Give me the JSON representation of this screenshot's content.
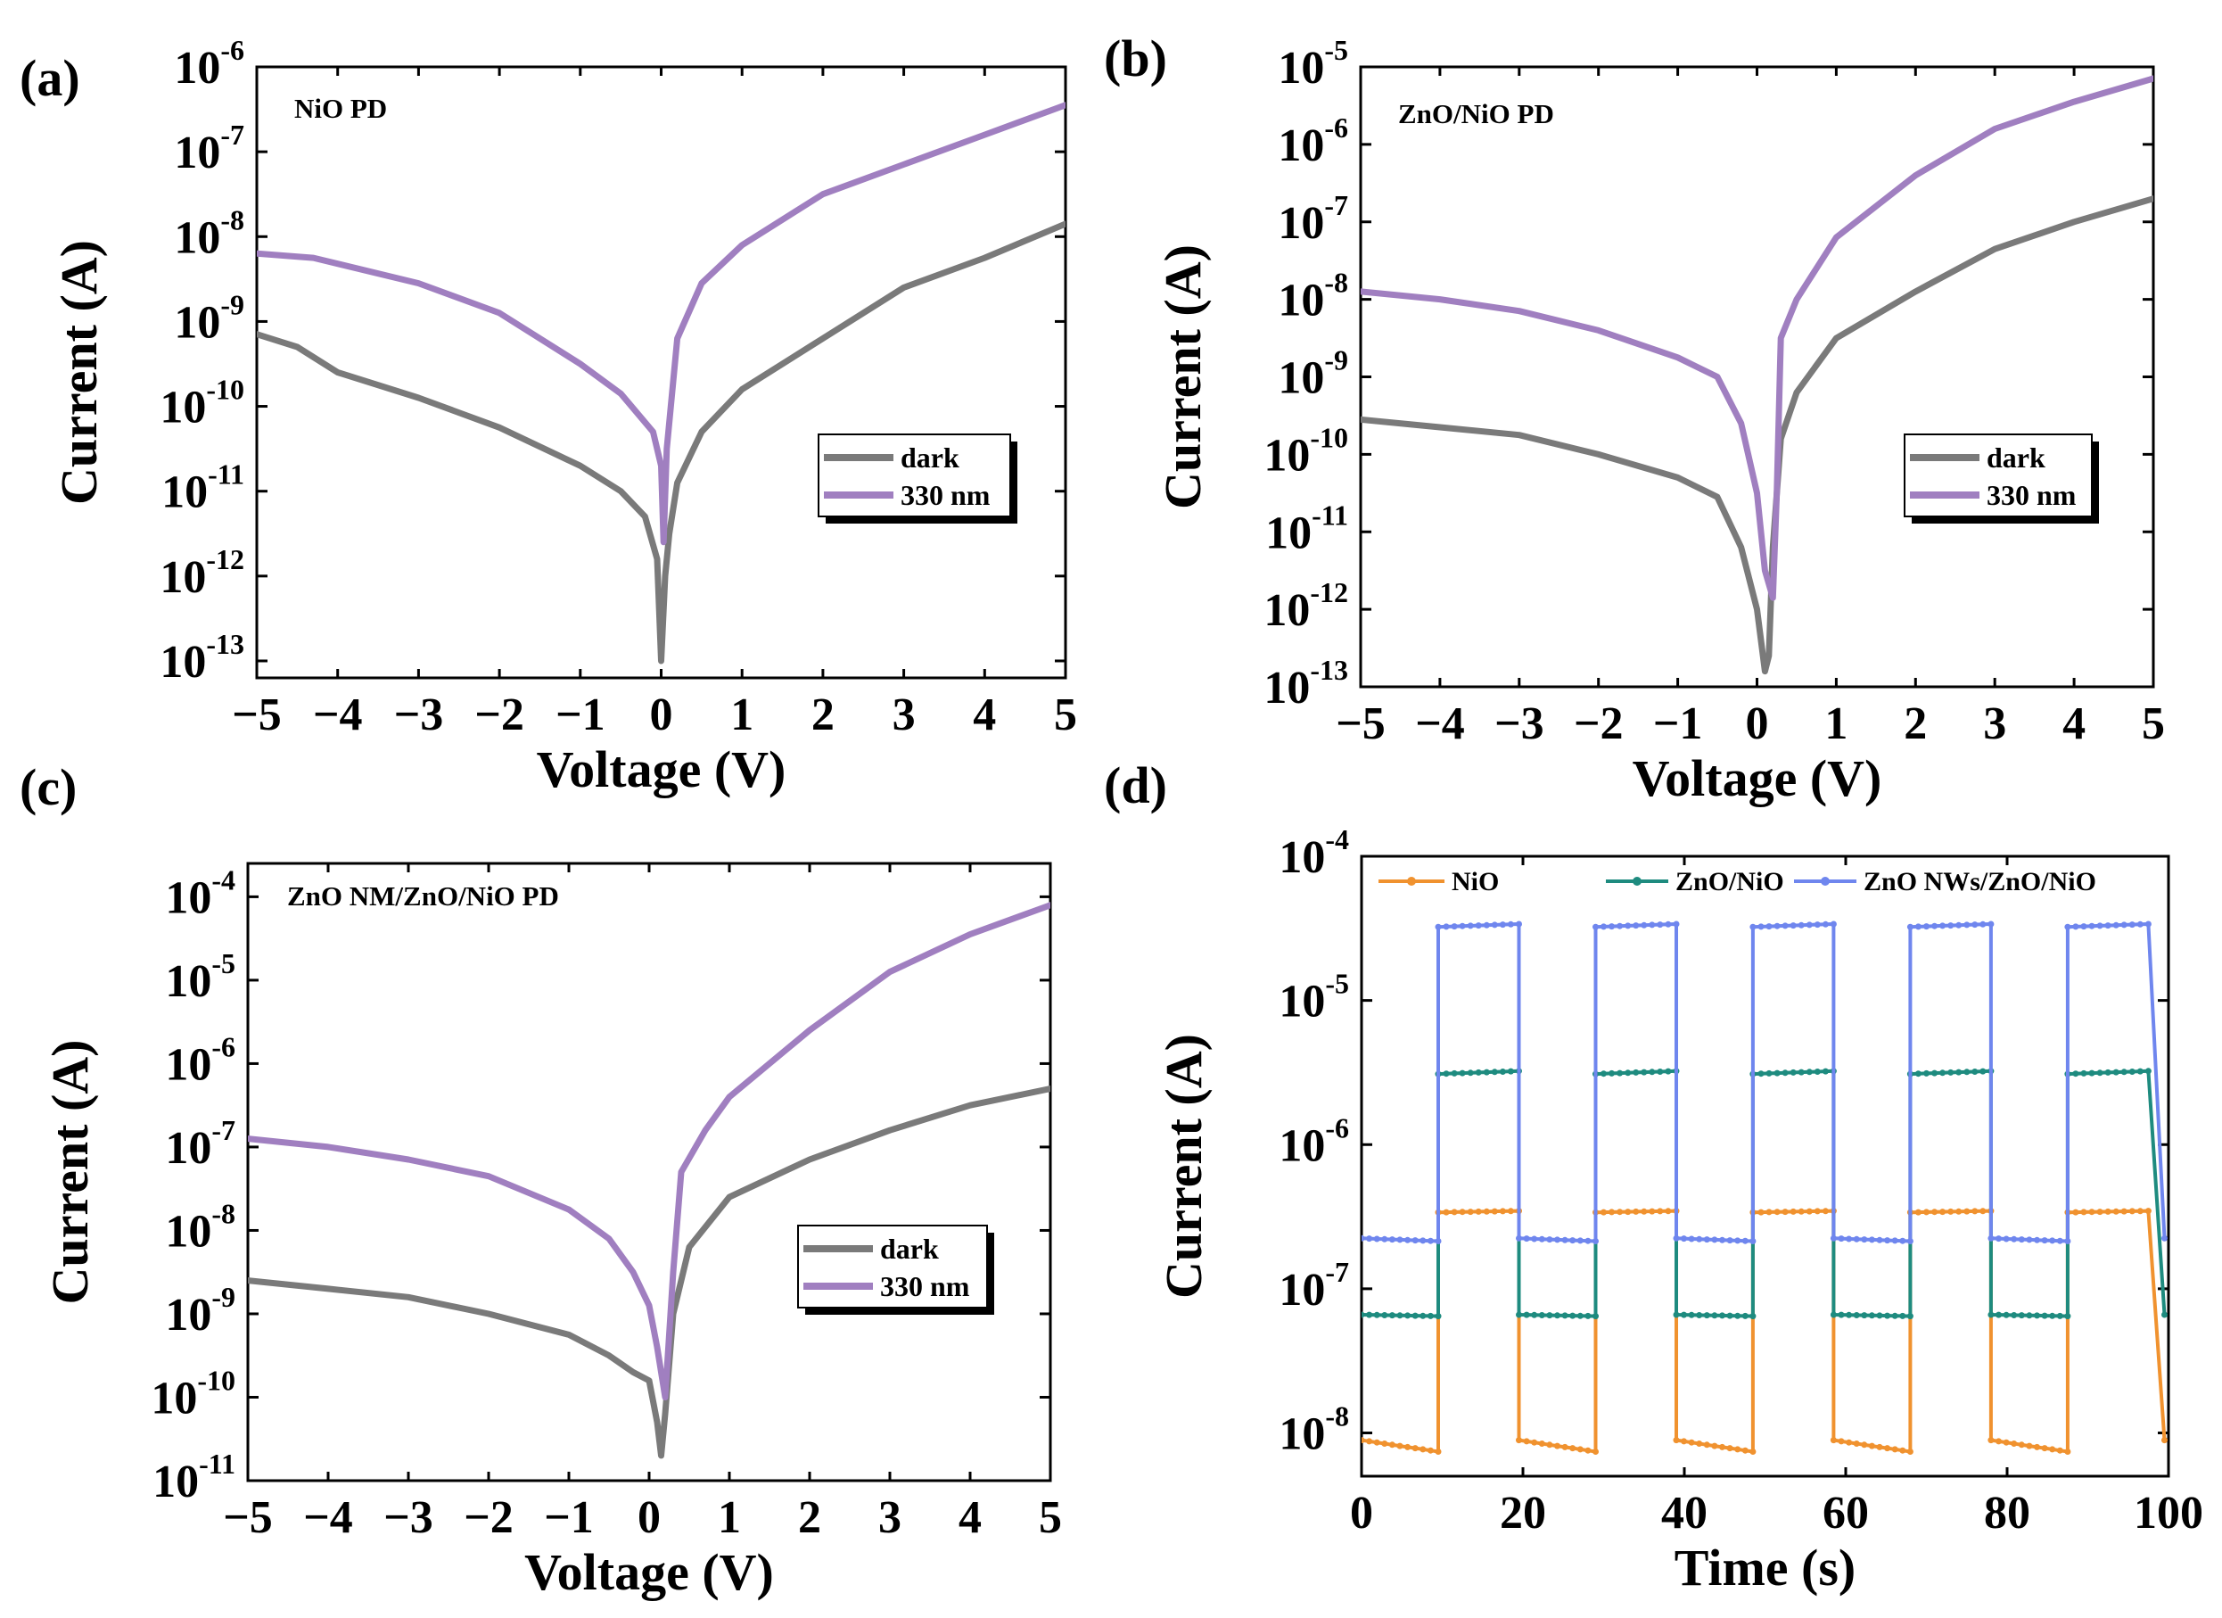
{
  "chart_data": [
    {
      "id": "a",
      "type": "line",
      "panel_label": "(a)",
      "annotation": "NiO PD",
      "xlabel": "Voltage (V)",
      "ylabel": "Current (A)",
      "x_scale": "linear",
      "y_scale": "log",
      "xlim": [
        -5,
        5
      ],
      "ylim_exp": [
        -13.2,
        -6
      ],
      "x_ticks": [
        "−5",
        "−4",
        "−3",
        "−2",
        "−1",
        "0",
        "1",
        "2",
        "3",
        "4",
        "5"
      ],
      "y_tick_exponents": [
        "-13",
        "-12",
        "-11",
        "-10",
        "-9",
        "-8",
        "-7",
        "-6"
      ],
      "legend": {
        "position": "center-right",
        "entries": [
          "dark",
          "330 nm"
        ]
      },
      "series": [
        {
          "name": "dark",
          "color": "#7a7a7a",
          "points": [
            [
              -5,
              -9.15
            ],
            [
              -4.5,
              -9.3
            ],
            [
              -4,
              -9.6
            ],
            [
              -3,
              -9.9
            ],
            [
              -2,
              -10.25
            ],
            [
              -1,
              -10.7
            ],
            [
              -0.5,
              -11.0
            ],
            [
              -0.2,
              -11.3
            ],
            [
              -0.05,
              -11.8
            ],
            [
              0,
              -13.0
            ],
            [
              0.05,
              -12.0
            ],
            [
              0.1,
              -11.5
            ],
            [
              0.2,
              -10.9
            ],
            [
              0.5,
              -10.3
            ],
            [
              1,
              -9.8
            ],
            [
              2,
              -9.2
            ],
            [
              3,
              -8.6
            ],
            [
              4,
              -8.25
            ],
            [
              5,
              -7.85
            ]
          ]
        },
        {
          "name": "330 nm",
          "color": "#a07fc0",
          "points": [
            [
              -5,
              -8.2
            ],
            [
              -4.3,
              -8.25
            ],
            [
              -3,
              -8.55
            ],
            [
              -2,
              -8.9
            ],
            [
              -1,
              -9.5
            ],
            [
              -0.5,
              -9.85
            ],
            [
              -0.1,
              -10.3
            ],
            [
              0,
              -10.7
            ],
            [
              0.03,
              -11.6
            ],
            [
              0.07,
              -10.5
            ],
            [
              0.2,
              -9.2
            ],
            [
              0.5,
              -8.55
            ],
            [
              1,
              -8.1
            ],
            [
              2,
              -7.5
            ],
            [
              3,
              -7.15
            ],
            [
              4,
              -6.8
            ],
            [
              5,
              -6.45
            ]
          ]
        }
      ]
    },
    {
      "id": "b",
      "type": "line",
      "panel_label": "(b)",
      "annotation": "ZnO/NiO PD",
      "xlabel": "Voltage (V)",
      "ylabel": "Current (A)",
      "x_scale": "linear",
      "y_scale": "log",
      "xlim": [
        -5,
        5
      ],
      "ylim_exp": [
        -13,
        -5
      ],
      "x_ticks": [
        "−5",
        "−4",
        "−3",
        "−2",
        "−1",
        "0",
        "1",
        "2",
        "3",
        "4",
        "5"
      ],
      "y_tick_exponents": [
        "-13",
        "-12",
        "-11",
        "-10",
        "-9",
        "-8",
        "-7",
        "-6",
        "-5"
      ],
      "legend": {
        "position": "center-right",
        "entries": [
          "dark",
          "330 nm"
        ]
      },
      "series": [
        {
          "name": "dark",
          "color": "#7a7a7a",
          "points": [
            [
              -5,
              -9.55
            ],
            [
              -4,
              -9.65
            ],
            [
              -3,
              -9.75
            ],
            [
              -2,
              -10.0
            ],
            [
              -1,
              -10.3
            ],
            [
              -0.5,
              -10.55
            ],
            [
              -0.2,
              -11.2
            ],
            [
              0,
              -12.0
            ],
            [
              0.1,
              -12.8
            ],
            [
              0.15,
              -12.6
            ],
            [
              0.2,
              -11.2
            ],
            [
              0.3,
              -9.8
            ],
            [
              0.5,
              -9.2
            ],
            [
              1,
              -8.5
            ],
            [
              2,
              -7.9
            ],
            [
              3,
              -7.35
            ],
            [
              4,
              -7.0
            ],
            [
              5,
              -6.7
            ]
          ]
        },
        {
          "name": "330 nm",
          "color": "#a07fc0",
          "points": [
            [
              -5,
              -7.9
            ],
            [
              -4,
              -8.0
            ],
            [
              -3,
              -8.15
            ],
            [
              -2,
              -8.4
            ],
            [
              -1,
              -8.75
            ],
            [
              -0.5,
              -9.0
            ],
            [
              -0.2,
              -9.6
            ],
            [
              0,
              -10.5
            ],
            [
              0.1,
              -11.5
            ],
            [
              0.2,
              -11.85
            ],
            [
              0.25,
              -10.5
            ],
            [
              0.3,
              -8.5
            ],
            [
              0.5,
              -8.0
            ],
            [
              1,
              -7.2
            ],
            [
              2,
              -6.4
            ],
            [
              3,
              -5.8
            ],
            [
              4,
              -5.45
            ],
            [
              5,
              -5.15
            ]
          ]
        }
      ]
    },
    {
      "id": "c",
      "type": "line",
      "panel_label": "(c)",
      "annotation": "ZnO NM/ZnO/NiO PD",
      "xlabel": "Voltage (V)",
      "ylabel": "Current (A)",
      "x_scale": "linear",
      "y_scale": "log",
      "xlim": [
        -5,
        5
      ],
      "ylim_exp": [
        -11,
        -3.6
      ],
      "x_ticks": [
        "−5",
        "−4",
        "−3",
        "−2",
        "−1",
        "0",
        "1",
        "2",
        "3",
        "4",
        "5"
      ],
      "y_tick_exponents": [
        "-11",
        "-10",
        "-9",
        "-8",
        "-7",
        "-6",
        "-5",
        "-4"
      ],
      "legend": {
        "position": "center-right",
        "entries": [
          "dark",
          "330 nm"
        ]
      },
      "series": [
        {
          "name": "dark",
          "color": "#7a7a7a",
          "points": [
            [
              -5,
              -8.6
            ],
            [
              -4,
              -8.7
            ],
            [
              -3,
              -8.8
            ],
            [
              -2,
              -9.0
            ],
            [
              -1,
              -9.25
            ],
            [
              -0.5,
              -9.5
            ],
            [
              -0.2,
              -9.7
            ],
            [
              0,
              -9.8
            ],
            [
              0.1,
              -10.3
            ],
            [
              0.15,
              -10.7
            ],
            [
              0.2,
              -10.2
            ],
            [
              0.3,
              -9.0
            ],
            [
              0.5,
              -8.2
            ],
            [
              1,
              -7.6
            ],
            [
              2,
              -7.15
            ],
            [
              3,
              -6.8
            ],
            [
              4,
              -6.5
            ],
            [
              5,
              -6.3
            ]
          ]
        },
        {
          "name": "330 nm",
          "color": "#a07fc0",
          "points": [
            [
              -5,
              -6.9
            ],
            [
              -4,
              -7.0
            ],
            [
              -3,
              -7.15
            ],
            [
              -2,
              -7.35
            ],
            [
              -1,
              -7.75
            ],
            [
              -0.5,
              -8.1
            ],
            [
              -0.2,
              -8.5
            ],
            [
              0,
              -8.9
            ],
            [
              0.1,
              -9.4
            ],
            [
              0.2,
              -10.0
            ],
            [
              0.3,
              -8.5
            ],
            [
              0.4,
              -7.3
            ],
            [
              0.7,
              -6.8
            ],
            [
              1,
              -6.4
            ],
            [
              2,
              -5.6
            ],
            [
              3,
              -4.9
            ],
            [
              4,
              -4.45
            ],
            [
              5,
              -4.1
            ]
          ]
        }
      ]
    },
    {
      "id": "d",
      "type": "line",
      "panel_label": "(d)",
      "annotation": "",
      "xlabel": "Time (s)",
      "ylabel": "Current (A)",
      "x_scale": "linear",
      "y_scale": "log",
      "xlim": [
        0,
        100
      ],
      "ylim_exp": [
        -8.3,
        -4
      ],
      "x_ticks": [
        "0",
        "20",
        "40",
        "60",
        "80",
        "100"
      ],
      "y_tick_exponents": [
        "-8",
        "-7",
        "-6",
        "-5",
        "-4"
      ],
      "legend": {
        "position": "top",
        "entries": [
          "NiO",
          "ZnO/NiO",
          "ZnO NWs/ZnO/NiO"
        ]
      },
      "pulse": {
        "period_s": 19.5,
        "on_start_s": 9.5,
        "on_end_s": 19.5,
        "cycles": 5,
        "end_s": 99.5
      },
      "series": [
        {
          "name": "NiO",
          "color": "#f0922f",
          "off_start": -8.05,
          "off_end": -8.13,
          "on_start": -6.47,
          "on_end": -6.46
        },
        {
          "name": "ZnO/NiO",
          "color": "#1e8b7f",
          "off_start": -7.18,
          "off_end": -7.19,
          "on_start": -5.51,
          "on_end": -5.49
        },
        {
          "name": "ZnO NWs/ZnO/NiO",
          "color": "#6f86ee",
          "off_start": -6.65,
          "off_end": -6.67,
          "on_start": -4.49,
          "on_end": -4.47
        }
      ]
    }
  ]
}
